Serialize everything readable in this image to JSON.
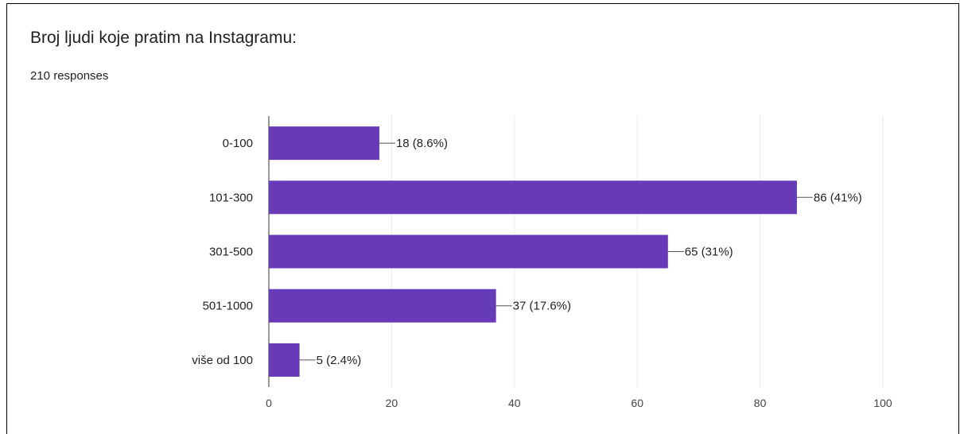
{
  "header": {
    "title": "Broj ljudi koje pratim na Instagramu:",
    "responses": "210 responses"
  },
  "colors": {
    "bar": "#673ab7",
    "grid": "#ebebeb",
    "axis": "#333333"
  },
  "chart_data": {
    "type": "bar",
    "orientation": "horizontal",
    "categories": [
      "0-100",
      "101-300",
      "301-500",
      "501-1000",
      "više od 100"
    ],
    "values": [
      18,
      86,
      65,
      37,
      5
    ],
    "data_labels": [
      "18 (8.6%)",
      "86 (41%)",
      "65 (31%)",
      "37 (17.6%)",
      "5 (2.4%)"
    ],
    "xlim": [
      0,
      100
    ],
    "xticks": [
      "0",
      "20",
      "40",
      "60",
      "80",
      "100"
    ],
    "grid": true
  }
}
